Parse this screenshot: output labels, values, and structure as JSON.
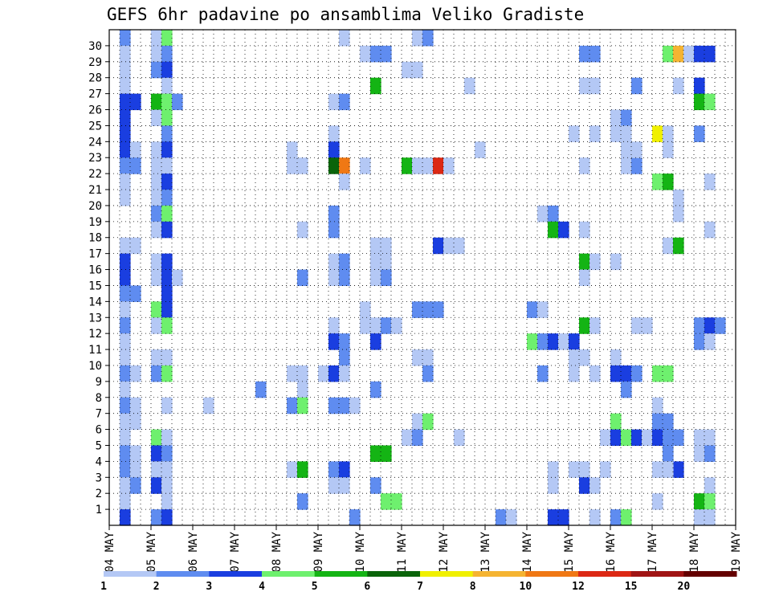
{
  "chart_data": {
    "type": "heatmap",
    "title": "GEFS 6hr padavine po ansamblima Veliko Gradiste",
    "xlabel": "",
    "ylabel": "",
    "grid": true,
    "x_ticks": [
      "04 MAY",
      "05 MAY",
      "06 MAY",
      "07 MAY",
      "08 MAY",
      "09 MAY",
      "10 MAY",
      "11 MAY",
      "12 MAY",
      "13 MAY",
      "14 MAY",
      "15 MAY",
      "16 MAY",
      "17 MAY",
      "18 MAY",
      "19 MAY"
    ],
    "y_ticks": [
      "1",
      "2",
      "3",
      "4",
      "5",
      "6",
      "7",
      "8",
      "9",
      "10",
      "11",
      "12",
      "13",
      "14",
      "15",
      "16",
      "17",
      "18",
      "19",
      "20",
      "21",
      "22",
      "23",
      "24",
      "25",
      "26",
      "27",
      "28",
      "29",
      "30"
    ],
    "x_unit": "6-hour step (4 per day), starting 04 MAY 00Z",
    "y_unit": "ensemble member",
    "legend": {
      "placement": "bottom",
      "labels": [
        "1",
        "2",
        "3",
        "4",
        "5",
        "6",
        "7",
        "8",
        "10",
        "12",
        "15",
        "20"
      ],
      "colors": [
        "#b4c8f5",
        "#5f8cf0",
        "#1a3ee0",
        "#6ef06e",
        "#14b414",
        "#0a640a",
        "#f0f000",
        "#f5b432",
        "#f07814",
        "#dc2814",
        "#a01414",
        "#640000"
      ]
    },
    "cells": [
      [
        1,
        30,
        2
      ],
      [
        1,
        29,
        1
      ],
      [
        1,
        28,
        1
      ],
      [
        1,
        27,
        1
      ],
      [
        1,
        26,
        3
      ],
      [
        2,
        26,
        3
      ],
      [
        1,
        25,
        3
      ],
      [
        1,
        24,
        3
      ],
      [
        1,
        23,
        3
      ],
      [
        2,
        23,
        1
      ],
      [
        1,
        22,
        2
      ],
      [
        2,
        22,
        2
      ],
      [
        1,
        21,
        1
      ],
      [
        1,
        20,
        1
      ],
      [
        1,
        17,
        1
      ],
      [
        2,
        17,
        1
      ],
      [
        1,
        16,
        3
      ],
      [
        1,
        15,
        3
      ],
      [
        1,
        14,
        2
      ],
      [
        2,
        14,
        2
      ],
      [
        1,
        13,
        1
      ],
      [
        1,
        12,
        2
      ],
      [
        1,
        11,
        1
      ],
      [
        1,
        10,
        1
      ],
      [
        1,
        9,
        2
      ],
      [
        2,
        9,
        1
      ],
      [
        1,
        8,
        1
      ],
      [
        1,
        7,
        2
      ],
      [
        2,
        7,
        1
      ],
      [
        1,
        6,
        1
      ],
      [
        2,
        6,
        1
      ],
      [
        1,
        5,
        1
      ],
      [
        1,
        4,
        2
      ],
      [
        2,
        4,
        1
      ],
      [
        1,
        3,
        2
      ],
      [
        2,
        3,
        1
      ],
      [
        1,
        2,
        1
      ],
      [
        2,
        2,
        2
      ],
      [
        1,
        1,
        1
      ],
      [
        1,
        0,
        3
      ],
      [
        4,
        30,
        1
      ],
      [
        5,
        30,
        4
      ],
      [
        4,
        29,
        1
      ],
      [
        5,
        29,
        2
      ],
      [
        4,
        28,
        2
      ],
      [
        5,
        28,
        3
      ],
      [
        5,
        27,
        1
      ],
      [
        4,
        26,
        5
      ],
      [
        5,
        26,
        4
      ],
      [
        6,
        26,
        2
      ],
      [
        4,
        25,
        1
      ],
      [
        5,
        25,
        4
      ],
      [
        5,
        24,
        2
      ],
      [
        4,
        23,
        1
      ],
      [
        5,
        23,
        3
      ],
      [
        4,
        22,
        1
      ],
      [
        5,
        22,
        1
      ],
      [
        4,
        21,
        1
      ],
      [
        5,
        21,
        3
      ],
      [
        4,
        20,
        1
      ],
      [
        5,
        20,
        2
      ],
      [
        4,
        19,
        2
      ],
      [
        5,
        19,
        4
      ],
      [
        4,
        18,
        1
      ],
      [
        5,
        18,
        3
      ],
      [
        4,
        16,
        1
      ],
      [
        5,
        16,
        3
      ],
      [
        4,
        15,
        1
      ],
      [
        5,
        15,
        3
      ],
      [
        6,
        15,
        1
      ],
      [
        5,
        14,
        3
      ],
      [
        4,
        13,
        4
      ],
      [
        5,
        13,
        3
      ],
      [
        4,
        12,
        1
      ],
      [
        5,
        12,
        4
      ],
      [
        4,
        10,
        1
      ],
      [
        5,
        10,
        1
      ],
      [
        4,
        9,
        2
      ],
      [
        5,
        9,
        4
      ],
      [
        5,
        7,
        1
      ],
      [
        4,
        5,
        4
      ],
      [
        5,
        5,
        1
      ],
      [
        4,
        4,
        3
      ],
      [
        5,
        4,
        2
      ],
      [
        4,
        3,
        1
      ],
      [
        5,
        3,
        1
      ],
      [
        4,
        2,
        3
      ],
      [
        5,
        2,
        1
      ],
      [
        5,
        1,
        1
      ],
      [
        4,
        0,
        2
      ],
      [
        5,
        0,
        3
      ],
      [
        9,
        7,
        1
      ],
      [
        14,
        8,
        2
      ],
      [
        17,
        23,
        1
      ],
      [
        17,
        22,
        1
      ],
      [
        18,
        22,
        1
      ],
      [
        18,
        18,
        1
      ],
      [
        18,
        15,
        2
      ],
      [
        17,
        9,
        1
      ],
      [
        18,
        9,
        1
      ],
      [
        18,
        8,
        1
      ],
      [
        17,
        7,
        2
      ],
      [
        18,
        7,
        4
      ],
      [
        17,
        3,
        1
      ],
      [
        18,
        3,
        5
      ],
      [
        18,
        1,
        2
      ],
      [
        22,
        30,
        1
      ],
      [
        21,
        24,
        1
      ],
      [
        21,
        23,
        3
      ],
      [
        21,
        22,
        6
      ],
      [
        22,
        22,
        9
      ],
      [
        22,
        21,
        1
      ],
      [
        21,
        19,
        2
      ],
      [
        21,
        18,
        2
      ],
      [
        21,
        16,
        1
      ],
      [
        22,
        16,
        2
      ],
      [
        21,
        15,
        1
      ],
      [
        22,
        15,
        2
      ],
      [
        21,
        12,
        1
      ],
      [
        21,
        11,
        3
      ],
      [
        22,
        11,
        2
      ],
      [
        22,
        10,
        2
      ],
      [
        20,
        9,
        1
      ],
      [
        21,
        9,
        3
      ],
      [
        22,
        9,
        1
      ],
      [
        21,
        7,
        2
      ],
      [
        22,
        7,
        2
      ],
      [
        23,
        7,
        1
      ],
      [
        21,
        3,
        2
      ],
      [
        22,
        3,
        3
      ],
      [
        21,
        2,
        1
      ],
      [
        22,
        2,
        1
      ],
      [
        23,
        0,
        2
      ],
      [
        21,
        26,
        1
      ],
      [
        22,
        26,
        2
      ],
      [
        24,
        29,
        1
      ],
      [
        25,
        29,
        2
      ],
      [
        26,
        29,
        2
      ],
      [
        25,
        27,
        5
      ],
      [
        24,
        22,
        1
      ],
      [
        25,
        17,
        1
      ],
      [
        26,
        17,
        1
      ],
      [
        25,
        16,
        1
      ],
      [
        26,
        16,
        1
      ],
      [
        25,
        15,
        1
      ],
      [
        26,
        15,
        2
      ],
      [
        24,
        13,
        1
      ],
      [
        25,
        12,
        1
      ],
      [
        26,
        12,
        2
      ],
      [
        27,
        12,
        1
      ],
      [
        24,
        12,
        1
      ],
      [
        25,
        11,
        3
      ],
      [
        25,
        8,
        2
      ],
      [
        25,
        4,
        5
      ],
      [
        26,
        4,
        5
      ],
      [
        25,
        2,
        2
      ],
      [
        26,
        1,
        4
      ],
      [
        27,
        1,
        4
      ],
      [
        29,
        30,
        1
      ],
      [
        30,
        30,
        2
      ],
      [
        28,
        28,
        1
      ],
      [
        29,
        28,
        1
      ],
      [
        28,
        22,
        5
      ],
      [
        29,
        22,
        1
      ],
      [
        30,
        22,
        1
      ],
      [
        31,
        22,
        10
      ],
      [
        32,
        22,
        1
      ],
      [
        31,
        17,
        3
      ],
      [
        32,
        17,
        1
      ],
      [
        33,
        17,
        1
      ],
      [
        29,
        13,
        2
      ],
      [
        30,
        13,
        2
      ],
      [
        31,
        13,
        2
      ],
      [
        29,
        10,
        1
      ],
      [
        30,
        10,
        1
      ],
      [
        30,
        9,
        2
      ],
      [
        29,
        6,
        1
      ],
      [
        30,
        6,
        4
      ],
      [
        28,
        5,
        1
      ],
      [
        29,
        5,
        2
      ],
      [
        33,
        5,
        1
      ],
      [
        34,
        27,
        1
      ],
      [
        35,
        23,
        1
      ],
      [
        37,
        0,
        2
      ],
      [
        38,
        0,
        1
      ],
      [
        40,
        13,
        2
      ],
      [
        41,
        13,
        1
      ],
      [
        41,
        19,
        1
      ],
      [
        42,
        19,
        2
      ],
      [
        42,
        18,
        5
      ],
      [
        43,
        18,
        3
      ],
      [
        40,
        11,
        4
      ],
      [
        41,
        11,
        2
      ],
      [
        42,
        11,
        3
      ],
      [
        43,
        11,
        1
      ],
      [
        44,
        11,
        3
      ],
      [
        41,
        9,
        2
      ],
      [
        42,
        3,
        1
      ],
      [
        42,
        2,
        1
      ],
      [
        42,
        0,
        3
      ],
      [
        43,
        0,
        3
      ],
      [
        45,
        29,
        2
      ],
      [
        46,
        29,
        2
      ],
      [
        45,
        27,
        1
      ],
      [
        46,
        27,
        1
      ],
      [
        44,
        24,
        1
      ],
      [
        46,
        24,
        1
      ],
      [
        45,
        22,
        1
      ],
      [
        45,
        18,
        1
      ],
      [
        45,
        16,
        5
      ],
      [
        46,
        16,
        1
      ],
      [
        45,
        15,
        1
      ],
      [
        45,
        12,
        5
      ],
      [
        46,
        12,
        1
      ],
      [
        44,
        10,
        1
      ],
      [
        45,
        10,
        1
      ],
      [
        44,
        9,
        1
      ],
      [
        46,
        9,
        1
      ],
      [
        44,
        3,
        1
      ],
      [
        45,
        3,
        1
      ],
      [
        47,
        3,
        1
      ],
      [
        45,
        2,
        3
      ],
      [
        46,
        2,
        1
      ],
      [
        47,
        5,
        1
      ],
      [
        46,
        0,
        1
      ],
      [
        48,
        25,
        1
      ],
      [
        49,
        25,
        2
      ],
      [
        48,
        24,
        1
      ],
      [
        49,
        24,
        1
      ],
      [
        49,
        22,
        1
      ],
      [
        50,
        22,
        2
      ],
      [
        48,
        16,
        1
      ],
      [
        48,
        10,
        1
      ],
      [
        48,
        9,
        3
      ],
      [
        49,
        9,
        3
      ],
      [
        49,
        8,
        2
      ],
      [
        48,
        6,
        4
      ],
      [
        48,
        5,
        3
      ],
      [
        49,
        5,
        4
      ],
      [
        50,
        5,
        3
      ],
      [
        51,
        5,
        1
      ],
      [
        48,
        0,
        2
      ],
      [
        49,
        0,
        4
      ],
      [
        50,
        27,
        2
      ],
      [
        49,
        23,
        1
      ],
      [
        50,
        23,
        1
      ],
      [
        50,
        12,
        1
      ],
      [
        51,
        12,
        1
      ],
      [
        50,
        9,
        2
      ],
      [
        53,
        29,
        4
      ],
      [
        54,
        29,
        8
      ],
      [
        55,
        29,
        1
      ],
      [
        52,
        24,
        7
      ],
      [
        53,
        24,
        1
      ],
      [
        53,
        23,
        1
      ],
      [
        52,
        21,
        4
      ],
      [
        53,
        21,
        5
      ],
      [
        54,
        20,
        1
      ],
      [
        54,
        19,
        1
      ],
      [
        53,
        17,
        1
      ],
      [
        54,
        17,
        5
      ],
      [
        52,
        9,
        4
      ],
      [
        53,
        9,
        4
      ],
      [
        52,
        7,
        1
      ],
      [
        52,
        6,
        2
      ],
      [
        53,
        6,
        2
      ],
      [
        52,
        5,
        3
      ],
      [
        53,
        5,
        2
      ],
      [
        54,
        5,
        2
      ],
      [
        53,
        4,
        2
      ],
      [
        54,
        3,
        3
      ],
      [
        53,
        3,
        1
      ],
      [
        52,
        1,
        1
      ],
      [
        54,
        27,
        1
      ],
      [
        52,
        3,
        1
      ],
      [
        56,
        29,
        3
      ],
      [
        57,
        29,
        3
      ],
      [
        56,
        27,
        3
      ],
      [
        56,
        26,
        5
      ],
      [
        57,
        26,
        4
      ],
      [
        56,
        24,
        2
      ],
      [
        57,
        21,
        1
      ],
      [
        57,
        18,
        1
      ],
      [
        56,
        12,
        2
      ],
      [
        57,
        12,
        3
      ],
      [
        58,
        12,
        2
      ],
      [
        56,
        11,
        2
      ],
      [
        57,
        11,
        1
      ],
      [
        56,
        5,
        1
      ],
      [
        57,
        5,
        1
      ],
      [
        56,
        4,
        1
      ],
      [
        57,
        4,
        2
      ],
      [
        57,
        2,
        1
      ],
      [
        56,
        1,
        5
      ],
      [
        57,
        1,
        4
      ],
      [
        56,
        0,
        1
      ],
      [
        57,
        0,
        1
      ]
    ]
  }
}
